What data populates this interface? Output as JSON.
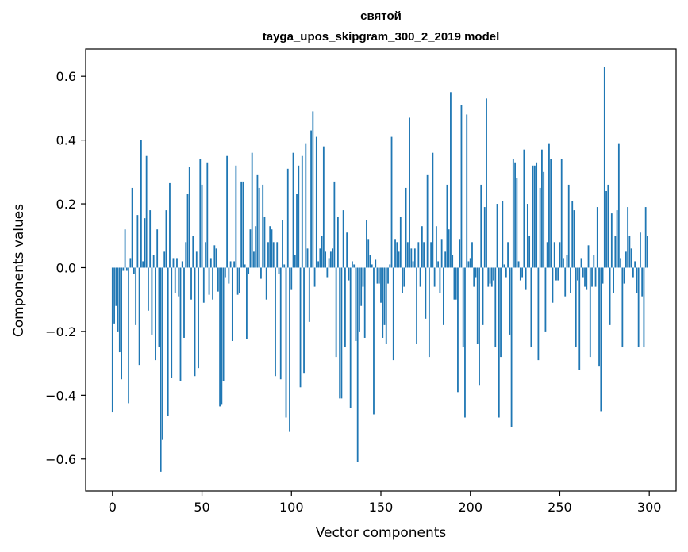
{
  "chart_data": {
    "type": "bar",
    "title": "святой",
    "subtitle": "tayga_upos_skipgram_300_2_2019 model",
    "xlabel": "Vector components",
    "ylabel": "Components values",
    "xlim": [
      -15,
      315
    ],
    "ylim": [
      -0.7,
      0.685
    ],
    "xticks": [
      0,
      50,
      100,
      150,
      200,
      250,
      300
    ],
    "xtick_labels": [
      "0",
      "50",
      "100",
      "150",
      "200",
      "250",
      "300"
    ],
    "yticks": [
      -0.6,
      -0.4,
      -0.2,
      0.0,
      0.2,
      0.4,
      0.6
    ],
    "ytick_labels": [
      "−0.6",
      "−0.4",
      "−0.2",
      "0.0",
      "0.2",
      "0.4",
      "0.6"
    ],
    "bar_color": "#1f77b4",
    "series": [
      {
        "name": "святой",
        "values": [
          -0.454,
          -0.175,
          -0.12,
          -0.2,
          -0.265,
          -0.35,
          -0.01,
          0.12,
          -0.01,
          -0.425,
          0.03,
          0.25,
          -0.02,
          -0.18,
          0.165,
          -0.305,
          0.4,
          0.02,
          0.155,
          0.35,
          -0.135,
          0.18,
          -0.21,
          0.04,
          -0.29,
          0.12,
          -0.25,
          -0.64,
          -0.54,
          0.05,
          0.18,
          -0.465,
          0.265,
          -0.345,
          0.03,
          -0.08,
          0.03,
          -0.09,
          -0.355,
          0.02,
          -0.22,
          0.08,
          0.23,
          0.315,
          -0.1,
          0.1,
          -0.34,
          0.05,
          -0.315,
          0.34,
          0.26,
          -0.11,
          0.08,
          0.33,
          -0.085,
          0.03,
          -0.1,
          0.07,
          0.06,
          -0.075,
          -0.435,
          -0.43,
          -0.355,
          -0.03,
          0.35,
          -0.05,
          0.02,
          -0.23,
          0.02,
          0.32,
          -0.085,
          -0.08,
          0.27,
          0.27,
          0.01,
          -0.225,
          -0.02,
          0.12,
          0.36,
          0.05,
          0.13,
          0.29,
          0.25,
          -0.035,
          0.26,
          0.16,
          -0.1,
          0.08,
          0.13,
          0.12,
          0.08,
          -0.34,
          0.08,
          -0.02,
          -0.35,
          0.15,
          0.01,
          -0.47,
          0.31,
          -0.515,
          -0.07,
          0.36,
          0.04,
          0.23,
          0.32,
          -0.375,
          0.35,
          -0.33,
          0.39,
          0.06,
          -0.17,
          0.43,
          0.49,
          -0.06,
          0.41,
          0.02,
          0.06,
          0.1,
          0.38,
          0.05,
          -0.03,
          0.03,
          0.05,
          0.06,
          0.27,
          -0.28,
          0.16,
          -0.41,
          -0.41,
          0.18,
          -0.25,
          0.11,
          -0.04,
          -0.44,
          0.02,
          0.01,
          -0.23,
          -0.61,
          -0.2,
          -0.12,
          -0.06,
          -0.22,
          0.15,
          0.09,
          0.04,
          0.01,
          -0.46,
          0.025,
          -0.05,
          -0.05,
          -0.11,
          -0.22,
          -0.18,
          -0.24,
          -0.05,
          0.01,
          0.41,
          -0.29,
          0.09,
          0.08,
          0.05,
          0.16,
          -0.08,
          -0.06,
          0.25,
          0.08,
          0.47,
          0.06,
          0.02,
          0.06,
          -0.24,
          0.08,
          -0.06,
          0.13,
          0.08,
          -0.16,
          0.29,
          -0.28,
          0.08,
          0.36,
          -0.06,
          0.13,
          0.02,
          -0.08,
          0.09,
          -0.18,
          0.05,
          0.26,
          0.12,
          0.55,
          0.04,
          -0.1,
          -0.1,
          -0.39,
          0.09,
          0.51,
          -0.25,
          -0.47,
          0.48,
          0.02,
          0.03,
          0.08,
          -0.06,
          -0.03,
          -0.24,
          -0.37,
          0.26,
          -0.18,
          0.19,
          0.53,
          -0.06,
          -0.05,
          -0.06,
          -0.04,
          -0.25,
          0.2,
          -0.47,
          -0.28,
          0.21,
          0.01,
          -0.03,
          0.08,
          -0.21,
          -0.5,
          0.34,
          0.33,
          0.28,
          0.02,
          -0.04,
          -0.03,
          0.37,
          -0.07,
          0.2,
          0.1,
          -0.25,
          0.32,
          0.32,
          0.33,
          -0.29,
          0.25,
          0.37,
          0.3,
          -0.2,
          0.08,
          0.39,
          0.34,
          -0.11,
          0.08,
          -0.04,
          -0.04,
          0.08,
          0.34,
          0.03,
          -0.09,
          0.04,
          0.26,
          -0.08,
          0.21,
          0.18,
          -0.25,
          -0.04,
          -0.32,
          0.03,
          -0.03,
          -0.06,
          -0.07,
          0.07,
          -0.28,
          -0.06,
          0.04,
          -0.06,
          0.19,
          -0.31,
          -0.45,
          -0.05,
          0.63,
          0.24,
          0.26,
          -0.18,
          0.17,
          -0.08,
          0.1,
          0.18,
          0.39,
          0.03,
          -0.25,
          -0.05,
          0.05,
          0.19,
          0.1,
          0.06,
          -0.03,
          0.02,
          -0.08,
          -0.25,
          0.11,
          -0.09,
          -0.25,
          0.19,
          0.1
        ]
      }
    ]
  }
}
